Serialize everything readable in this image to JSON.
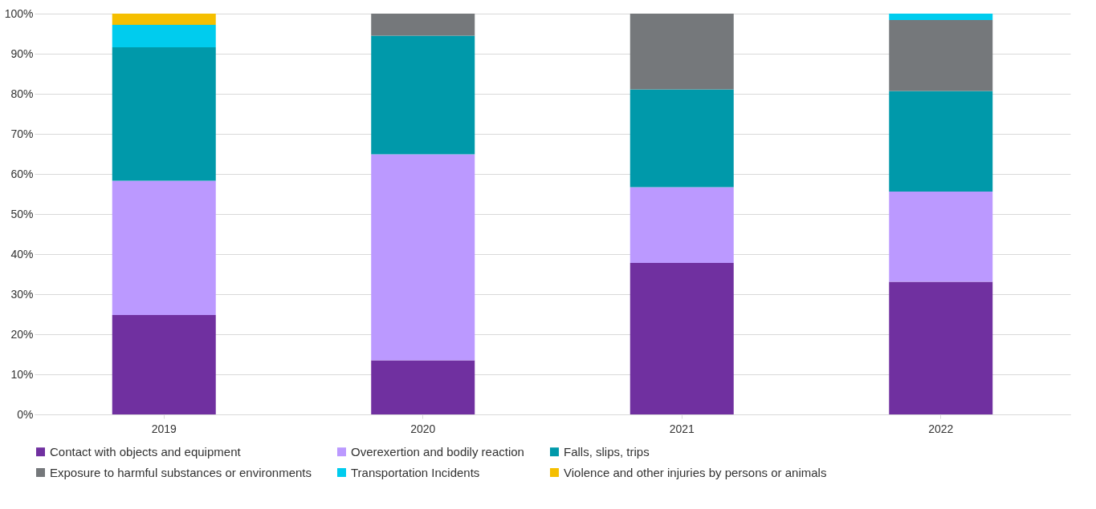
{
  "chart_data": {
    "type": "bar",
    "stacked": true,
    "categories": [
      "2019",
      "2020",
      "2021",
      "2022"
    ],
    "series": [
      {
        "name": "Contact with objects and equipment",
        "color": "#7030a0",
        "values": [
          24.8,
          13.5,
          37.8,
          33.1
        ]
      },
      {
        "name": "Overexertion and bodily reaction",
        "color": "#bb99ff",
        "values": [
          33.5,
          51.4,
          18.9,
          22.5
        ]
      },
      {
        "name": "Falls, slips, trips",
        "color": "#0099aa",
        "values": [
          33.3,
          29.6,
          24.4,
          25.1
        ]
      },
      {
        "name": "Exposure to harmful substances or environments",
        "color": "#75787b",
        "values": [
          null,
          5.5,
          18.9,
          17.7
        ]
      },
      {
        "name": "Transportation Incidents",
        "color": "#00ccee",
        "values": [
          5.6,
          null,
          null,
          1.6
        ]
      },
      {
        "name": "Violence and other injuries by persons or animals",
        "color": "#f5bf00",
        "values": [
          2.8,
          null,
          null,
          null
        ]
      }
    ],
    "ylim": [
      0,
      100
    ],
    "yticks": [
      {
        "value": 0,
        "label": "0%"
      },
      {
        "value": 10,
        "label": "10%"
      },
      {
        "value": 20,
        "label": "20%"
      },
      {
        "value": 30,
        "label": "30%"
      },
      {
        "value": 40,
        "label": "40%"
      },
      {
        "value": 50,
        "label": "50%"
      },
      {
        "value": 60,
        "label": "60%"
      },
      {
        "value": 70,
        "label": "70%"
      },
      {
        "value": 80,
        "label": "80%"
      },
      {
        "value": 90,
        "label": "90%"
      },
      {
        "value": 100,
        "label": "100%"
      }
    ],
    "grid": "y",
    "legend": "bottom"
  }
}
